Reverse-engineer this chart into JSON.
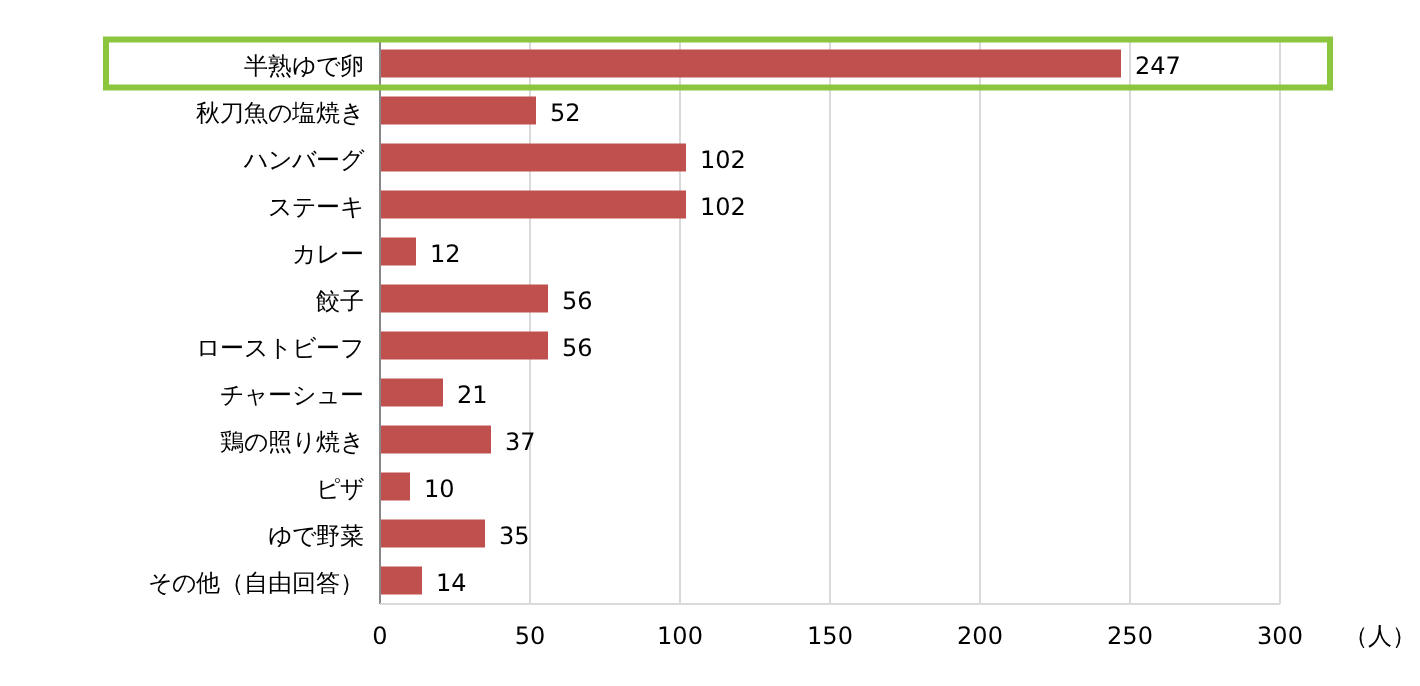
{
  "chart_data": {
    "type": "bar",
    "orientation": "horizontal",
    "xlabel": "（人）",
    "categories": [
      "半熟ゆで卵",
      "秋刀魚の塩焼き",
      "ハンバーグ",
      "ステーキ",
      "カレー",
      "餃子",
      "ローストビーフ",
      "チャーシュー",
      "鶏の照り焼き",
      "ピザ",
      "ゆで野菜",
      "その他（自由回答）"
    ],
    "values": [
      247,
      52,
      102,
      102,
      12,
      56,
      56,
      21,
      37,
      10,
      35,
      14
    ],
    "color": "#c0504d",
    "xlim": [
      0,
      300
    ],
    "xticks": [
      0,
      50,
      100,
      150,
      200,
      250,
      300
    ],
    "grid": "x",
    "data_labels": true
  }
}
